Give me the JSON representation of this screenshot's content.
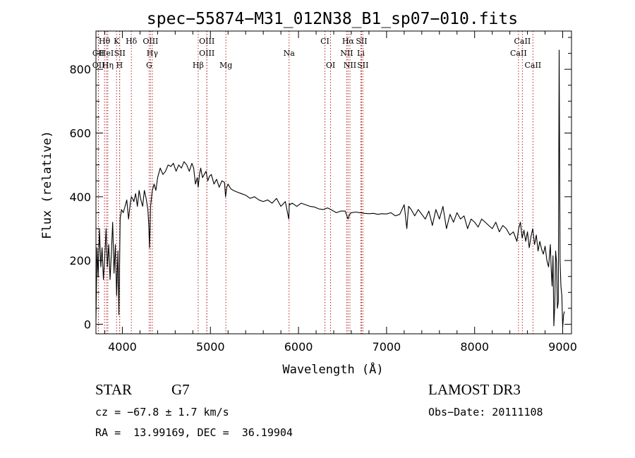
{
  "chart_data": {
    "type": "line",
    "title": "spec−55874−M31_012N38_B1_sp07−010.fits",
    "xlabel": "Wavelength (Å)",
    "ylabel": "Flux (relative)",
    "xlim": [
      3700,
      9100
    ],
    "ylim": [
      -30,
      920
    ],
    "xticks": [
      4000,
      5000,
      6000,
      7000,
      8000,
      9000
    ],
    "yticks": [
      0,
      200,
      400,
      600,
      800
    ],
    "series": [
      {
        "name": "flux",
        "x": [
          3700,
          3712,
          3725,
          3740,
          3755,
          3770,
          3785,
          3800,
          3815,
          3830,
          3845,
          3860,
          3875,
          3890,
          3905,
          3920,
          3935,
          3950,
          3960,
          3968,
          3975,
          3990,
          4010,
          4030,
          4050,
          4070,
          4090,
          4102,
          4115,
          4130,
          4150,
          4170,
          4190,
          4210,
          4230,
          4250,
          4270,
          4290,
          4300,
          4308,
          4320,
          4340,
          4360,
          4380,
          4400,
          4430,
          4460,
          4490,
          4520,
          4550,
          4580,
          4610,
          4640,
          4670,
          4700,
          4730,
          4760,
          4790,
          4810,
          4830,
          4850,
          4861,
          4875,
          4890,
          4910,
          4930,
          4950,
          4970,
          4990,
          5010,
          5040,
          5070,
          5100,
          5130,
          5160,
          5172,
          5185,
          5200,
          5230,
          5260,
          5300,
          5350,
          5400,
          5450,
          5500,
          5550,
          5600,
          5650,
          5700,
          5750,
          5800,
          5850,
          5890,
          5895,
          5900,
          5930,
          5980,
          6030,
          6080,
          6130,
          6180,
          6230,
          6280,
          6330,
          6380,
          6430,
          6480,
          6530,
          6563,
          6580,
          6600,
          6650,
          6700,
          6750,
          6800,
          6850,
          6900,
          6950,
          7000,
          7050,
          7100,
          7150,
          7200,
          7230,
          7250,
          7280,
          7320,
          7360,
          7400,
          7440,
          7480,
          7520,
          7560,
          7600,
          7640,
          7680,
          7720,
          7760,
          7800,
          7840,
          7880,
          7920,
          7960,
          8000,
          8040,
          8080,
          8120,
          8160,
          8200,
          8240,
          8280,
          8320,
          8360,
          8400,
          8440,
          8480,
          8500,
          8520,
          8540,
          8560,
          8580,
          8600,
          8620,
          8640,
          8660,
          8680,
          8700,
          8720,
          8740,
          8760,
          8780,
          8800,
          8820,
          8840,
          8860,
          8870,
          8880,
          8890,
          8900,
          8910,
          8920,
          8930,
          8940,
          8950,
          8960,
          8970,
          8980,
          8990,
          9000,
          9010,
          9020
        ],
        "values": [
          10,
          240,
          150,
          300,
          180,
          240,
          140,
          210,
          300,
          180,
          250,
          140,
          220,
          320,
          160,
          250,
          90,
          230,
          30,
          190,
          330,
          360,
          350,
          370,
          390,
          330,
          380,
          400,
          395,
          385,
          410,
          370,
          420,
          390,
          370,
          420,
          395,
          360,
          310,
          240,
          370,
          420,
          440,
          420,
          460,
          490,
          470,
          480,
          500,
          495,
          505,
          480,
          500,
          490,
          510,
          500,
          480,
          505,
          490,
          440,
          460,
          430,
          470,
          490,
          460,
          470,
          480,
          450,
          465,
          470,
          440,
          455,
          430,
          450,
          445,
          400,
          430,
          440,
          425,
          420,
          415,
          410,
          405,
          395,
          400,
          390,
          385,
          390,
          380,
          395,
          370,
          385,
          330,
          380,
          375,
          380,
          370,
          380,
          375,
          370,
          368,
          362,
          360,
          365,
          358,
          350,
          355,
          355,
          330,
          345,
          350,
          352,
          350,
          348,
          347,
          348,
          345,
          347,
          346,
          350,
          340,
          345,
          375,
          300,
          370,
          360,
          340,
          360,
          345,
          330,
          355,
          310,
          360,
          330,
          370,
          300,
          345,
          320,
          350,
          330,
          340,
          300,
          330,
          320,
          305,
          330,
          320,
          310,
          300,
          320,
          290,
          310,
          300,
          280,
          290,
          260,
          300,
          320,
          270,
          295,
          260,
          290,
          240,
          275,
          300,
          250,
          280,
          230,
          260,
          235,
          220,
          245,
          200,
          180,
          250,
          170,
          120,
          215,
          -5,
          60,
          230,
          195,
          50,
          70,
          860,
          200,
          120,
          90,
          -10,
          30,
          40
        ]
      }
    ],
    "lines": [
      {
        "label": "Hθ",
        "wave": 3797,
        "row": 1
      },
      {
        "label": "CII",
        "wave": 3727,
        "row": 2
      },
      {
        "label": "OII",
        "wave": 3729,
        "row": 3
      },
      {
        "label": "HeI",
        "wave": 3820,
        "row": 2
      },
      {
        "label": "Hη",
        "wave": 3835,
        "row": 3
      },
      {
        "label": "K",
        "wave": 3934,
        "row": 1
      },
      {
        "label": "SII",
        "wave": 3970,
        "row": 2
      },
      {
        "label": "H",
        "wave": 3968,
        "row": 3
      },
      {
        "label": "Hδ",
        "wave": 4102,
        "row": 1
      },
      {
        "label": "OIII",
        "wave": 4320,
        "row": 1
      },
      {
        "label": "Hγ",
        "wave": 4340,
        "row": 2
      },
      {
        "label": "G",
        "wave": 4304,
        "row": 3
      },
      {
        "label": "OIII",
        "wave": 4959,
        "row": 1
      },
      {
        "label": "OIII",
        "wave": 4959,
        "row": 2
      },
      {
        "label": "Hβ",
        "wave": 4861,
        "row": 3
      },
      {
        "label": "Mg",
        "wave": 5175,
        "row": 3
      },
      {
        "label": "Na",
        "wave": 5893,
        "row": 2
      },
      {
        "label": "CI",
        "wave": 6300,
        "row": 1
      },
      {
        "label": "OI",
        "wave": 6364,
        "row": 3
      },
      {
        "label": "Hα",
        "wave": 6563,
        "row": 1
      },
      {
        "label": "SII",
        "wave": 6716,
        "row": 1
      },
      {
        "label": "NII",
        "wave": 6548,
        "row": 2
      },
      {
        "label": "Li",
        "wave": 6708,
        "row": 2
      },
      {
        "label": "NII",
        "wave": 6584,
        "row": 3
      },
      {
        "label": "SII",
        "wave": 6731,
        "row": 3
      },
      {
        "label": "CaII",
        "wave": 8542,
        "row": 1
      },
      {
        "label": "CaII",
        "wave": 8498,
        "row": 2
      },
      {
        "label": "CaII",
        "wave": 8662,
        "row": 3
      }
    ]
  },
  "info": {
    "class": "STAR",
    "subclass": "G7",
    "survey": "LAMOST DR3",
    "redshift": "cz = −67.8 ± 1.7 km/s",
    "obs_date": "Obs−Date: 20111108",
    "coords": "RA =  13.99169, DEC =  36.19904"
  }
}
